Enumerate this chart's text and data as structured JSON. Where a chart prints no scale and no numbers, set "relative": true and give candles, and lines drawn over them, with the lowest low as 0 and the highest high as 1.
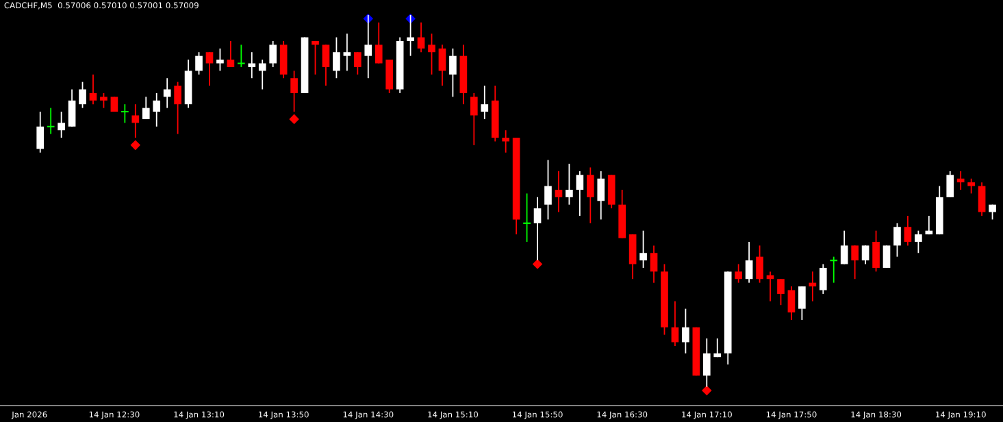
{
  "chart_data": {
    "type": "candlestick",
    "title": "CADCHF,M5  0.57006 0.57010 0.57001 0.57009",
    "relative": true,
    "grid": false,
    "x": [
      "2026-01-14T11:55",
      "2026-01-14T12:00",
      "2026-01-14T12:05",
      "2026-01-14T12:10",
      "2026-01-14T12:15",
      "2026-01-14T12:20",
      "2026-01-14T12:25",
      "2026-01-14T12:30",
      "2026-01-14T12:35",
      "2026-01-14T12:40",
      "2026-01-14T12:45",
      "2026-01-14T12:50",
      "2026-01-14T12:55",
      "2026-01-14T13:00",
      "2026-01-14T13:05",
      "2026-01-14T13:10",
      "2026-01-14T13:15",
      "2026-01-14T13:20",
      "2026-01-14T13:25",
      "2026-01-14T13:30",
      "2026-01-14T13:35",
      "2026-01-14T13:40",
      "2026-01-14T13:45",
      "2026-01-14T13:50",
      "2026-01-14T13:55",
      "2026-01-14T14:00",
      "2026-01-14T14:05",
      "2026-01-14T14:10",
      "2026-01-14T14:15",
      "2026-01-14T14:20",
      "2026-01-14T14:25",
      "2026-01-14T14:30",
      "2026-01-14T14:35",
      "2026-01-14T14:40",
      "2026-01-14T14:45",
      "2026-01-14T14:50",
      "2026-01-14T14:55",
      "2026-01-14T15:00",
      "2026-01-14T15:05",
      "2026-01-14T15:10",
      "2026-01-14T15:15",
      "2026-01-14T15:20",
      "2026-01-14T15:25",
      "2026-01-14T15:30",
      "2026-01-14T15:35",
      "2026-01-14T15:40",
      "2026-01-14T15:45",
      "2026-01-14T15:50",
      "2026-01-14T15:55",
      "2026-01-14T16:00",
      "2026-01-14T16:05",
      "2026-01-14T16:10",
      "2026-01-14T16:15",
      "2026-01-14T16:20",
      "2026-01-14T16:25",
      "2026-01-14T16:30",
      "2026-01-14T16:35",
      "2026-01-14T16:40",
      "2026-01-14T16:45",
      "2026-01-14T16:50",
      "2026-01-14T16:55",
      "2026-01-14T17:00",
      "2026-01-14T17:05",
      "2026-01-14T17:10",
      "2026-01-14T17:15",
      "2026-01-14T17:20",
      "2026-01-14T17:25",
      "2026-01-14T17:30",
      "2026-01-14T17:35",
      "2026-01-14T17:40",
      "2026-01-14T17:45",
      "2026-01-14T17:50",
      "2026-01-14T17:55",
      "2026-01-14T18:00",
      "2026-01-14T18:05",
      "2026-01-14T18:10",
      "2026-01-14T18:15",
      "2026-01-14T18:20",
      "2026-01-14T18:25",
      "2026-01-14T18:30",
      "2026-01-14T18:35",
      "2026-01-14T18:40",
      "2026-01-14T18:45",
      "2026-01-14T18:50",
      "2026-01-14T18:55",
      "2026-01-14T19:00",
      "2026-01-14T19:05",
      "2026-01-14T19:10",
      "2026-01-14T19:15",
      "2026-01-14T19:20",
      "2026-01-14T19:25"
    ],
    "ohlc": [
      [
        0.64,
        0.74,
        0.63,
        0.7
      ],
      [
        0.7,
        0.75,
        0.68,
        0.7
      ],
      [
        0.69,
        0.74,
        0.67,
        0.71
      ],
      [
        0.7,
        0.8,
        0.7,
        0.77
      ],
      [
        0.76,
        0.82,
        0.75,
        0.8
      ],
      [
        0.79,
        0.84,
        0.76,
        0.77
      ],
      [
        0.78,
        0.79,
        0.75,
        0.77
      ],
      [
        0.78,
        0.78,
        0.74,
        0.74
      ],
      [
        0.74,
        0.76,
        0.71,
        0.74
      ],
      [
        0.73,
        0.76,
        0.67,
        0.71
      ],
      [
        0.72,
        0.78,
        0.72,
        0.75
      ],
      [
        0.74,
        0.79,
        0.7,
        0.77
      ],
      [
        0.78,
        0.83,
        0.75,
        0.8
      ],
      [
        0.81,
        0.82,
        0.68,
        0.76
      ],
      [
        0.76,
        0.88,
        0.75,
        0.85
      ],
      [
        0.85,
        0.9,
        0.84,
        0.89
      ],
      [
        0.9,
        0.9,
        0.81,
        0.87
      ],
      [
        0.87,
        0.91,
        0.85,
        0.88
      ],
      [
        0.88,
        0.93,
        0.86,
        0.86
      ],
      [
        0.87,
        0.92,
        0.86,
        0.87
      ],
      [
        0.86,
        0.9,
        0.83,
        0.87
      ],
      [
        0.85,
        0.88,
        0.8,
        0.87
      ],
      [
        0.87,
        0.93,
        0.86,
        0.92
      ],
      [
        0.92,
        0.93,
        0.83,
        0.84
      ],
      [
        0.83,
        0.85,
        0.74,
        0.79
      ],
      [
        0.79,
        0.94,
        0.79,
        0.94
      ],
      [
        0.93,
        0.93,
        0.84,
        0.92
      ],
      [
        0.92,
        0.92,
        0.81,
        0.86
      ],
      [
        0.85,
        0.94,
        0.83,
        0.9
      ],
      [
        0.89,
        0.95,
        0.85,
        0.9
      ],
      [
        0.9,
        0.9,
        0.84,
        0.86
      ],
      [
        0.89,
        1.0,
        0.83,
        0.92
      ],
      [
        0.92,
        0.98,
        0.87,
        0.87
      ],
      [
        0.88,
        0.88,
        0.79,
        0.8
      ],
      [
        0.8,
        0.94,
        0.79,
        0.93
      ],
      [
        0.93,
        1.0,
        0.89,
        0.94
      ],
      [
        0.94,
        0.98,
        0.9,
        0.91
      ],
      [
        0.92,
        0.95,
        0.84,
        0.9
      ],
      [
        0.91,
        0.92,
        0.81,
        0.85
      ],
      [
        0.84,
        0.91,
        0.78,
        0.89
      ],
      [
        0.89,
        0.92,
        0.76,
        0.79
      ],
      [
        0.78,
        0.79,
        0.65,
        0.73
      ],
      [
        0.74,
        0.81,
        0.72,
        0.76
      ],
      [
        0.77,
        0.81,
        0.66,
        0.67
      ],
      [
        0.67,
        0.69,
        0.63,
        0.66
      ],
      [
        0.67,
        0.67,
        0.41,
        0.45
      ],
      [
        0.44,
        0.52,
        0.39,
        0.44
      ],
      [
        0.44,
        0.51,
        0.34,
        0.48
      ],
      [
        0.49,
        0.61,
        0.45,
        0.54
      ],
      [
        0.53,
        0.58,
        0.47,
        0.51
      ],
      [
        0.51,
        0.6,
        0.49,
        0.53
      ],
      [
        0.53,
        0.58,
        0.46,
        0.57
      ],
      [
        0.57,
        0.59,
        0.44,
        0.51
      ],
      [
        0.5,
        0.58,
        0.45,
        0.56
      ],
      [
        0.57,
        0.57,
        0.48,
        0.49
      ],
      [
        0.49,
        0.53,
        0.4,
        0.4
      ],
      [
        0.41,
        0.41,
        0.29,
        0.33
      ],
      [
        0.34,
        0.42,
        0.32,
        0.36
      ],
      [
        0.36,
        0.38,
        0.28,
        0.31
      ],
      [
        0.31,
        0.33,
        0.14,
        0.16
      ],
      [
        0.16,
        0.23,
        0.11,
        0.12
      ],
      [
        0.12,
        0.21,
        0.09,
        0.16
      ],
      [
        0.16,
        0.16,
        0.03,
        0.03
      ],
      [
        0.03,
        0.13,
        0.0,
        0.09
      ],
      [
        0.08,
        0.13,
        0.08,
        0.09
      ],
      [
        0.09,
        0.31,
        0.06,
        0.31
      ],
      [
        0.31,
        0.33,
        0.28,
        0.29
      ],
      [
        0.29,
        0.39,
        0.28,
        0.34
      ],
      [
        0.35,
        0.38,
        0.28,
        0.29
      ],
      [
        0.3,
        0.31,
        0.23,
        0.29
      ],
      [
        0.29,
        0.29,
        0.22,
        0.25
      ],
      [
        0.26,
        0.27,
        0.18,
        0.2
      ],
      [
        0.21,
        0.27,
        0.18,
        0.27
      ],
      [
        0.28,
        0.31,
        0.23,
        0.27
      ],
      [
        0.26,
        0.33,
        0.25,
        0.32
      ],
      [
        0.34,
        0.35,
        0.28,
        0.34
      ],
      [
        0.33,
        0.42,
        0.33,
        0.38
      ],
      [
        0.38,
        0.38,
        0.29,
        0.34
      ],
      [
        0.34,
        0.38,
        0.33,
        0.38
      ],
      [
        0.39,
        0.42,
        0.31,
        0.32
      ],
      [
        0.32,
        0.38,
        0.32,
        0.38
      ],
      [
        0.38,
        0.44,
        0.35,
        0.43
      ],
      [
        0.43,
        0.46,
        0.38,
        0.39
      ],
      [
        0.39,
        0.42,
        0.36,
        0.41
      ],
      [
        0.41,
        0.46,
        0.41,
        0.42
      ],
      [
        0.41,
        0.54,
        0.41,
        0.51
      ],
      [
        0.51,
        0.58,
        0.51,
        0.57
      ],
      [
        0.56,
        0.58,
        0.53,
        0.55
      ],
      [
        0.55,
        0.56,
        0.52,
        0.54
      ],
      [
        0.54,
        0.55,
        0.46,
        0.47
      ],
      [
        0.47,
        0.49,
        0.45,
        0.49
      ]
    ],
    "colors": [
      "#ffffff",
      "#00ff00",
      "#ffffff",
      "#ffffff",
      "#ffffff",
      "#ff0000",
      "#ff0000",
      "#ff0000",
      "#00ff00",
      "#ff0000",
      "#ffffff",
      "#ffffff",
      "#ffffff",
      "#ff0000",
      "#ffffff",
      "#ffffff",
      "#ff0000",
      "#ffffff",
      "#ff0000",
      "#00ff00",
      "#ffffff",
      "#ffffff",
      "#ffffff",
      "#ff0000",
      "#ff0000",
      "#ffffff",
      "#ff0000",
      "#ff0000",
      "#ffffff",
      "#ffffff",
      "#ff0000",
      "#ffffff",
      "#ff0000",
      "#ff0000",
      "#ffffff",
      "#ffffff",
      "#ff0000",
      "#ff0000",
      "#ff0000",
      "#ffffff",
      "#ff0000",
      "#ff0000",
      "#ffffff",
      "#ff0000",
      "#ff0000",
      "#ff0000",
      "#00ff00",
      "#ffffff",
      "#ffffff",
      "#ff0000",
      "#ffffff",
      "#ffffff",
      "#ff0000",
      "#ffffff",
      "#ff0000",
      "#ff0000",
      "#ff0000",
      "#ffffff",
      "#ff0000",
      "#ff0000",
      "#ff0000",
      "#ffffff",
      "#ff0000",
      "#ffffff",
      "#ffffff",
      "#ffffff",
      "#ff0000",
      "#ffffff",
      "#ff0000",
      "#ff0000",
      "#ff0000",
      "#ff0000",
      "#ffffff",
      "#ff0000",
      "#ffffff",
      "#00ff00",
      "#ffffff",
      "#ff0000",
      "#ffffff",
      "#ff0000",
      "#ffffff",
      "#ffffff",
      "#ff0000",
      "#ffffff",
      "#ffffff",
      "#ffffff",
      "#ffffff",
      "#ff0000",
      "#ff0000",
      "#ff0000",
      "#ffffff"
    ],
    "series": [
      {
        "type": "scatter",
        "marker": "diamond",
        "color": "#ff0000",
        "x": [
          "2026-01-14T12:40",
          "2026-01-14T13:55",
          "2026-01-14T15:50",
          "2026-01-14T17:10"
        ],
        "values": [
          0.65,
          0.72,
          0.33,
          -0.01
        ]
      },
      {
        "type": "scatter",
        "marker": "diamond",
        "color": "#0000ff",
        "x": [
          "2026-01-14T14:30",
          "2026-01-14T14:50"
        ],
        "values": [
          0.99,
          0.99
        ]
      }
    ],
    "xlim": [
      "2026-01-14T11:36",
      "2026-01-14T19:30"
    ],
    "xticks": [
      {
        "value": "2026-01-14T11:50",
        "label": "Jan 2026"
      },
      {
        "value": "2026-01-14T12:30",
        "label": "14 Jan 12:30"
      },
      {
        "value": "2026-01-14T13:10",
        "label": "14 Jan 13:10"
      },
      {
        "value": "2026-01-14T13:50",
        "label": "14 Jan 13:50"
      },
      {
        "value": "2026-01-14T14:30",
        "label": "14 Jan 14:30"
      },
      {
        "value": "2026-01-14T15:10",
        "label": "14 Jan 15:10"
      },
      {
        "value": "2026-01-14T15:50",
        "label": "14 Jan 15:50"
      },
      {
        "value": "2026-01-14T16:30",
        "label": "14 Jan 16:30"
      },
      {
        "value": "2026-01-14T17:10",
        "label": "14 Jan 17:10"
      },
      {
        "value": "2026-01-14T17:50",
        "label": "14 Jan 17:50"
      },
      {
        "value": "2026-01-14T18:30",
        "label": "14 Jan 18:30"
      },
      {
        "value": "2026-01-14T19:10",
        "label": "14 Jan 19:10"
      }
    ]
  }
}
